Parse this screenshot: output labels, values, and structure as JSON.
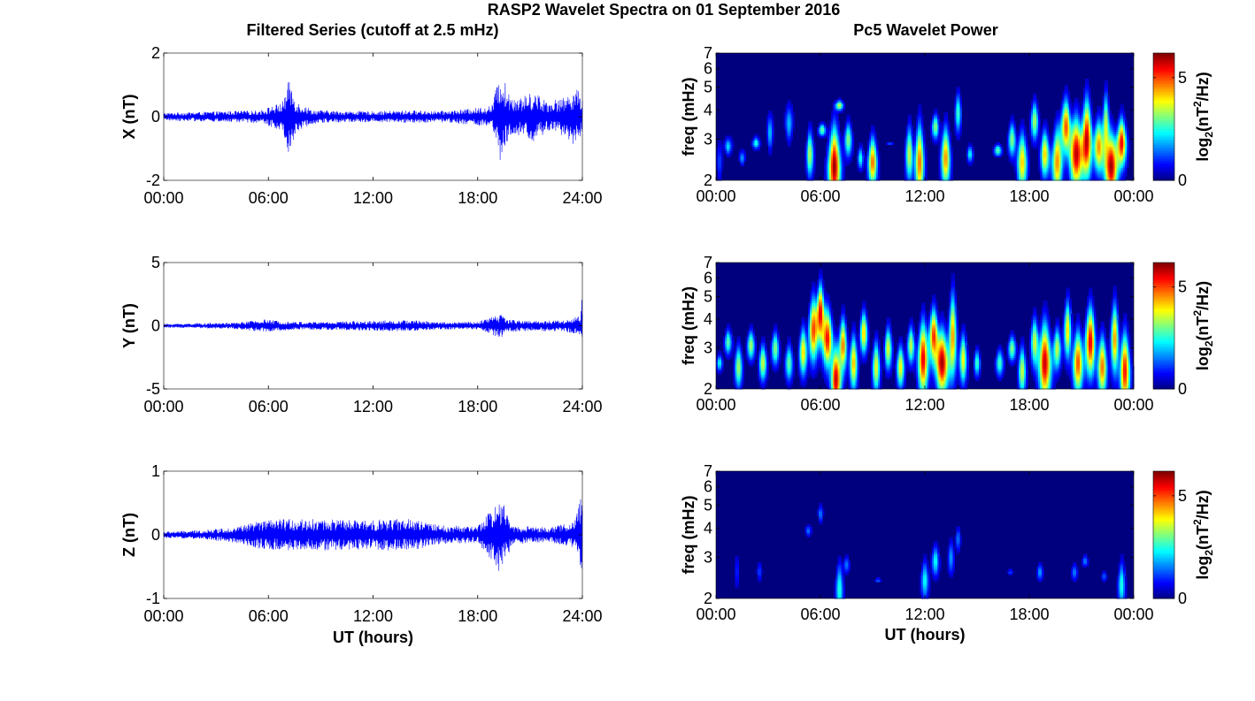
{
  "figure": {
    "title": "RASP2 Wavelet Spectra on 01 September 2016",
    "left_title": "Filtered Series (cutoff at 2.5 mHz)",
    "right_title": "Pc5 Wavelet Power",
    "xlabel": "UT (hours)"
  },
  "chart_data": [
    {
      "type": "line",
      "name": "X filtered series",
      "ylabel": "X (nT)",
      "ylim": [
        -2,
        2
      ],
      "yticks": [
        "-2",
        "0",
        "2"
      ],
      "xlim": [
        0,
        24
      ],
      "xticks": [
        "00:00",
        "06:00",
        "12:00",
        "18:00",
        "24:00"
      ],
      "xlabel": "",
      "color": "#0000ff",
      "envelope": [
        [
          0,
          0.12
        ],
        [
          2,
          0.15
        ],
        [
          4,
          0.18
        ],
        [
          5.5,
          0.2
        ],
        [
          6.8,
          0.45
        ],
        [
          7.2,
          1.2
        ],
        [
          7.6,
          0.5
        ],
        [
          8.5,
          0.22
        ],
        [
          10,
          0.18
        ],
        [
          12,
          0.17
        ],
        [
          14,
          0.2
        ],
        [
          16,
          0.18
        ],
        [
          17.5,
          0.25
        ],
        [
          18.8,
          0.35
        ],
        [
          19.3,
          1.45
        ],
        [
          19.8,
          0.75
        ],
        [
          20.5,
          0.6
        ],
        [
          21.2,
          0.8
        ],
        [
          22,
          0.5
        ],
        [
          23,
          0.6
        ],
        [
          23.6,
          0.95
        ],
        [
          24,
          0.6
        ]
      ]
    },
    {
      "type": "line",
      "name": "Y filtered series",
      "ylabel": "Y (nT)",
      "ylim": [
        -5,
        5
      ],
      "yticks": [
        "-5",
        "0",
        "5"
      ],
      "xlim": [
        0,
        24
      ],
      "xticks": [
        "00:00",
        "06:00",
        "12:00",
        "18:00",
        "24:00"
      ],
      "xlabel": "",
      "color": "#0000ff",
      "envelope": [
        [
          0,
          0.15
        ],
        [
          2,
          0.2
        ],
        [
          4,
          0.25
        ],
        [
          5.8,
          0.5
        ],
        [
          6.5,
          0.4
        ],
        [
          8,
          0.3
        ],
        [
          10,
          0.35
        ],
        [
          12,
          0.4
        ],
        [
          14,
          0.45
        ],
        [
          16,
          0.3
        ],
        [
          18,
          0.3
        ],
        [
          19.3,
          1.0
        ],
        [
          19.8,
          0.5
        ],
        [
          21,
          0.4
        ],
        [
          23,
          0.45
        ],
        [
          23.9,
          0.8
        ],
        [
          24,
          2.8
        ]
      ]
    },
    {
      "type": "line",
      "name": "Z filtered series",
      "ylabel": "Z (nT)",
      "ylim": [
        -1,
        1
      ],
      "yticks": [
        "-1",
        "0",
        "1"
      ],
      "xlim": [
        0,
        24
      ],
      "xticks": [
        "00:00",
        "06:00",
        "12:00",
        "18:00",
        "24:00"
      ],
      "xlabel": "UT (hours)",
      "color": "#0000ff",
      "envelope": [
        [
          0,
          0.05
        ],
        [
          2,
          0.07
        ],
        [
          4,
          0.12
        ],
        [
          5.5,
          0.22
        ],
        [
          7,
          0.25
        ],
        [
          9,
          0.25
        ],
        [
          11,
          0.23
        ],
        [
          13,
          0.25
        ],
        [
          14,
          0.25
        ],
        [
          16,
          0.15
        ],
        [
          18,
          0.13
        ],
        [
          19.3,
          0.6
        ],
        [
          20,
          0.15
        ],
        [
          22,
          0.12
        ],
        [
          23.5,
          0.2
        ],
        [
          24,
          0.65
        ]
      ]
    },
    {
      "type": "heatmap",
      "name": "X wavelet power",
      "ylabel": "freq (mHz)",
      "yscale": "log",
      "ylim": [
        2,
        7
      ],
      "yticks": [
        "2",
        "3",
        "4",
        "5",
        "6",
        "7"
      ],
      "xlim": [
        0,
        24
      ],
      "xticks": [
        "00:00",
        "06:00",
        "12:00",
        "18:00",
        "00:00"
      ],
      "xlabel": "",
      "colorbar": {
        "label": "log2(nT^2/Hz)",
        "ticks": [
          "0",
          "5"
        ],
        "range": [
          0,
          6.2
        ]
      },
      "background_color": "#00007f",
      "blobs": [
        [
          0.2,
          2.4,
          0.12,
          1.2,
          1.6
        ],
        [
          0.7,
          2.8,
          0.15,
          2.2,
          2.2
        ],
        [
          1.5,
          2.5,
          0.12,
          1.8,
          2.0
        ],
        [
          2.3,
          2.9,
          0.15,
          2.6,
          2.8
        ],
        [
          3.1,
          3.2,
          0.12,
          2.0,
          2.2
        ],
        [
          4.2,
          3.5,
          0.15,
          2.0,
          2.4
        ],
        [
          5.4,
          2.6,
          0.15,
          3.4,
          3.2
        ],
        [
          6.1,
          3.3,
          0.15,
          3.0,
          3.2
        ],
        [
          6.8,
          2.3,
          0.25,
          6.1,
          3.5
        ],
        [
          7.1,
          4.2,
          0.15,
          3.6,
          4.0
        ],
        [
          7.6,
          3.0,
          0.15,
          3.2,
          3.4
        ],
        [
          8.3,
          2.5,
          0.12,
          2.6,
          2.6
        ],
        [
          9.0,
          2.4,
          0.18,
          4.8,
          3.0
        ],
        [
          10.0,
          2.9,
          0.15,
          2.4,
          2.6
        ],
        [
          11.1,
          2.6,
          0.15,
          3.6,
          3.4
        ],
        [
          11.7,
          2.4,
          0.18,
          4.8,
          3.6
        ],
        [
          12.6,
          3.4,
          0.15,
          3.2,
          3.6
        ],
        [
          13.2,
          2.5,
          0.18,
          4.6,
          3.4
        ],
        [
          13.9,
          3.9,
          0.12,
          2.8,
          4.6
        ],
        [
          14.6,
          2.6,
          0.12,
          2.4,
          2.6
        ],
        [
          16.2,
          2.7,
          0.15,
          3.0,
          2.6
        ],
        [
          17.0,
          3.0,
          0.15,
          3.2,
          3.4
        ],
        [
          17.6,
          2.4,
          0.2,
          4.2,
          3.2
        ],
        [
          18.3,
          3.6,
          0.15,
          3.4,
          4.2
        ],
        [
          18.9,
          2.6,
          0.18,
          4.2,
          3.2
        ],
        [
          19.6,
          2.4,
          0.2,
          4.6,
          3.4
        ],
        [
          20.1,
          3.4,
          0.2,
          5.0,
          4.4
        ],
        [
          20.7,
          2.6,
          0.25,
          5.8,
          3.8
        ],
        [
          21.3,
          3.0,
          0.2,
          5.8,
          4.6
        ],
        [
          22.0,
          2.8,
          0.2,
          4.6,
          3.6
        ],
        [
          22.4,
          3.5,
          0.12,
          3.6,
          4.8
        ],
        [
          22.7,
          2.3,
          0.25,
          6.0,
          3.2
        ],
        [
          23.3,
          2.9,
          0.2,
          5.6,
          3.6
        ]
      ]
    },
    {
      "type": "heatmap",
      "name": "Y wavelet power",
      "ylabel": "freq (mHz)",
      "yscale": "log",
      "ylim": [
        2,
        7
      ],
      "yticks": [
        "2",
        "3",
        "4",
        "5",
        "6",
        "7"
      ],
      "xlim": [
        0,
        24
      ],
      "xticks": [
        "00:00",
        "06:00",
        "12:00",
        "18:00",
        "00:00"
      ],
      "xlabel": "",
      "colorbar": {
        "label": "log2(nT^2/Hz)",
        "ticks": [
          "0",
          "5"
        ],
        "range": [
          0,
          6.2
        ]
      },
      "background_color": "#00007f",
      "blobs": [
        [
          0.2,
          2.6,
          0.12,
          2.4,
          2.6
        ],
        [
          0.7,
          3.2,
          0.15,
          3.0,
          3.4
        ],
        [
          1.3,
          2.5,
          0.15,
          3.4,
          3.0
        ],
        [
          2.0,
          3.1,
          0.15,
          3.4,
          3.4
        ],
        [
          2.7,
          2.6,
          0.15,
          3.6,
          3.0
        ],
        [
          3.4,
          3.0,
          0.15,
          3.2,
          3.4
        ],
        [
          4.2,
          2.6,
          0.15,
          3.0,
          3.0
        ],
        [
          5.0,
          2.9,
          0.15,
          4.2,
          3.6
        ],
        [
          5.6,
          3.6,
          0.18,
          5.0,
          5.0
        ],
        [
          6.0,
          4.3,
          0.15,
          5.6,
          5.6
        ],
        [
          6.4,
          3.3,
          0.2,
          5.4,
          4.4
        ],
        [
          6.9,
          2.2,
          0.2,
          5.8,
          3.0
        ],
        [
          7.3,
          3.1,
          0.15,
          4.8,
          4.0
        ],
        [
          7.9,
          2.6,
          0.15,
          4.4,
          3.4
        ],
        [
          8.5,
          3.5,
          0.15,
          4.2,
          4.2
        ],
        [
          9.2,
          2.5,
          0.15,
          3.8,
          3.2
        ],
        [
          9.9,
          3.0,
          0.15,
          3.8,
          3.6
        ],
        [
          10.6,
          2.5,
          0.15,
          4.0,
          3.0
        ],
        [
          11.2,
          3.1,
          0.15,
          3.6,
          3.6
        ],
        [
          11.9,
          2.7,
          0.2,
          5.6,
          4.0
        ],
        [
          12.5,
          3.4,
          0.18,
          5.2,
          4.4
        ],
        [
          13.0,
          2.6,
          0.25,
          6.0,
          3.6
        ],
        [
          13.6,
          3.4,
          0.15,
          4.6,
          5.4
        ],
        [
          14.2,
          2.7,
          0.15,
          4.0,
          3.4
        ],
        [
          15.0,
          2.6,
          0.12,
          2.8,
          2.8
        ],
        [
          16.3,
          2.6,
          0.15,
          2.8,
          2.8
        ],
        [
          17.0,
          3.0,
          0.15,
          3.2,
          3.2
        ],
        [
          17.6,
          2.4,
          0.15,
          3.6,
          3.0
        ],
        [
          18.3,
          3.2,
          0.15,
          3.6,
          4.0
        ],
        [
          18.9,
          2.6,
          0.25,
          5.8,
          4.0
        ],
        [
          19.6,
          3.0,
          0.15,
          3.6,
          3.6
        ],
        [
          20.2,
          3.6,
          0.15,
          4.2,
          4.8
        ],
        [
          20.8,
          2.6,
          0.2,
          5.0,
          3.6
        ],
        [
          21.5,
          3.2,
          0.2,
          5.6,
          4.6
        ],
        [
          22.2,
          2.5,
          0.18,
          4.8,
          3.4
        ],
        [
          22.9,
          3.3,
          0.15,
          4.6,
          4.8
        ],
        [
          23.5,
          2.4,
          0.2,
          5.4,
          3.6
        ]
      ]
    },
    {
      "type": "heatmap",
      "name": "Z wavelet power",
      "ylabel": "freq (mHz)",
      "yscale": "log",
      "ylim": [
        2,
        7
      ],
      "yticks": [
        "2",
        "3",
        "4",
        "5",
        "6",
        "7"
      ],
      "xlim": [
        0,
        24
      ],
      "xticks": [
        "00:00",
        "06:00",
        "12:00",
        "18:00",
        "00:00"
      ],
      "xlabel": "UT (hours)",
      "colorbar": {
        "label": "log2(nT^2/Hz)",
        "ticks": [
          "0",
          "5"
        ],
        "range": [
          0,
          6.2
        ]
      },
      "background_color": "#00007f",
      "blobs": [
        [
          1.2,
          2.6,
          0.1,
          1.0,
          1.8
        ],
        [
          2.5,
          2.6,
          0.1,
          1.2,
          2.0
        ],
        [
          5.3,
          3.9,
          0.12,
          1.6,
          3.2
        ],
        [
          6.0,
          4.6,
          0.1,
          1.6,
          3.6
        ],
        [
          7.1,
          2.2,
          0.15,
          2.6,
          2.8
        ],
        [
          7.5,
          2.8,
          0.12,
          1.6,
          2.8
        ],
        [
          9.3,
          2.4,
          0.12,
          1.4,
          2.2
        ],
        [
          12.0,
          2.4,
          0.15,
          2.4,
          2.8
        ],
        [
          12.6,
          2.9,
          0.15,
          2.4,
          3.2
        ],
        [
          13.5,
          3.0,
          0.12,
          1.8,
          3.4
        ],
        [
          13.9,
          3.6,
          0.1,
          1.6,
          3.8
        ],
        [
          16.9,
          2.6,
          0.1,
          1.2,
          2.2
        ],
        [
          18.6,
          2.6,
          0.12,
          1.8,
          2.6
        ],
        [
          20.6,
          2.6,
          0.12,
          1.6,
          2.6
        ],
        [
          21.2,
          2.9,
          0.12,
          1.6,
          2.8
        ],
        [
          22.3,
          2.5,
          0.1,
          1.4,
          2.4
        ],
        [
          23.3,
          2.3,
          0.15,
          2.6,
          2.8
        ]
      ]
    }
  ]
}
